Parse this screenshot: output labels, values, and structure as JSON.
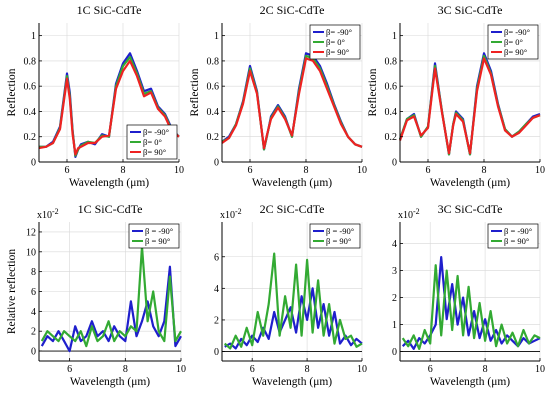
{
  "chart_data": [
    {
      "type": "line",
      "title": "1C SiC-CdTe",
      "xlabel": "Wavelength (μm)",
      "ylabel": "Reflection",
      "xlim": [
        5,
        10
      ],
      "ylim": [
        0,
        1.1
      ],
      "xticks": [
        "6",
        "8",
        "10"
      ],
      "yticks": [
        "0",
        "0.2",
        "0.4",
        "0.6",
        "0.8",
        "1"
      ],
      "grid": true,
      "legend_position": "bottom-right",
      "x": [
        5,
        5.25,
        5.5,
        5.75,
        6,
        6.1,
        6.2,
        6.3,
        6.4,
        6.5,
        6.75,
        7,
        7.25,
        7.5,
        7.75,
        8,
        8.25,
        8.5,
        8.75,
        9,
        9.25,
        9.5,
        9.75,
        10
      ],
      "series": [
        {
          "name": "β= -90°",
          "color": "#1f1fcc",
          "values": [
            0.12,
            0.12,
            0.16,
            0.28,
            0.7,
            0.55,
            0.25,
            0.04,
            0.1,
            0.14,
            0.16,
            0.14,
            0.22,
            0.2,
            0.62,
            0.78,
            0.86,
            0.72,
            0.56,
            0.58,
            0.44,
            0.38,
            0.26,
            0.2
          ]
        },
        {
          "name": "β= 0°",
          "color": "#33aa33",
          "values": [
            0.12,
            0.12,
            0.15,
            0.27,
            0.68,
            0.52,
            0.24,
            0.05,
            0.1,
            0.13,
            0.16,
            0.15,
            0.21,
            0.2,
            0.6,
            0.76,
            0.83,
            0.7,
            0.54,
            0.56,
            0.43,
            0.37,
            0.25,
            0.2
          ]
        },
        {
          "name": "β= 90°",
          "color": "#ee2222",
          "values": [
            0.11,
            0.12,
            0.15,
            0.26,
            0.66,
            0.5,
            0.22,
            0.06,
            0.11,
            0.12,
            0.15,
            0.15,
            0.2,
            0.21,
            0.58,
            0.72,
            0.8,
            0.68,
            0.52,
            0.55,
            0.42,
            0.36,
            0.24,
            0.2
          ]
        }
      ]
    },
    {
      "type": "line",
      "title": "2C SiC-CdTe",
      "xlabel": "Wavelength (μm)",
      "ylabel": "Reflection",
      "xlim": [
        5,
        10
      ],
      "ylim": [
        0,
        1.1
      ],
      "xticks": [
        "6",
        "8",
        "10"
      ],
      "yticks": [
        "0",
        "0.2",
        "0.4",
        "0.6",
        "0.8",
        "1"
      ],
      "grid": true,
      "legend_position": "top-right",
      "x": [
        5,
        5.25,
        5.5,
        5.75,
        6,
        6.25,
        6.5,
        6.6,
        6.75,
        7,
        7.25,
        7.5,
        7.75,
        8,
        8.25,
        8.5,
        8.75,
        9,
        9.25,
        9.5,
        9.75,
        10
      ],
      "series": [
        {
          "name": "β= -90°",
          "color": "#1f1fcc",
          "values": [
            0.16,
            0.2,
            0.3,
            0.48,
            0.76,
            0.56,
            0.1,
            0.2,
            0.36,
            0.45,
            0.36,
            0.2,
            0.58,
            0.86,
            0.84,
            0.76,
            0.62,
            0.46,
            0.32,
            0.2,
            0.14,
            0.12
          ]
        },
        {
          "name": "β= 0°",
          "color": "#33aa33",
          "values": [
            0.16,
            0.19,
            0.3,
            0.47,
            0.74,
            0.55,
            0.1,
            0.2,
            0.35,
            0.44,
            0.35,
            0.2,
            0.56,
            0.84,
            0.82,
            0.74,
            0.6,
            0.45,
            0.31,
            0.2,
            0.14,
            0.12
          ]
        },
        {
          "name": "β= 90°",
          "color": "#ee2222",
          "values": [
            0.15,
            0.19,
            0.29,
            0.46,
            0.72,
            0.54,
            0.11,
            0.21,
            0.34,
            0.43,
            0.34,
            0.21,
            0.54,
            0.82,
            0.8,
            0.72,
            0.58,
            0.44,
            0.3,
            0.2,
            0.14,
            0.12
          ]
        }
      ]
    },
    {
      "type": "line",
      "title": "3C SiC-CdTe",
      "xlabel": "Wavelength (μm)",
      "ylabel": "Reflection",
      "xlim": [
        5,
        10
      ],
      "ylim": [
        0,
        1.1
      ],
      "xticks": [
        "6",
        "8",
        "10"
      ],
      "yticks": [
        "0",
        "0.2",
        "0.4",
        "0.6",
        "0.8",
        "1"
      ],
      "grid": true,
      "legend_position": "top-right",
      "x": [
        5,
        5.25,
        5.5,
        5.75,
        6,
        6.25,
        6.5,
        6.75,
        6.9,
        7,
        7.25,
        7.5,
        7.75,
        8,
        8.25,
        8.5,
        8.75,
        9,
        9.25,
        9.5,
        9.75,
        10
      ],
      "series": [
        {
          "name": "β= -90°",
          "color": "#1f1fcc",
          "values": [
            0.18,
            0.34,
            0.38,
            0.2,
            0.28,
            0.78,
            0.4,
            0.06,
            0.3,
            0.4,
            0.34,
            0.06,
            0.6,
            0.86,
            0.72,
            0.46,
            0.26,
            0.2,
            0.24,
            0.3,
            0.36,
            0.38
          ]
        },
        {
          "name": "β= 0°",
          "color": "#33aa33",
          "values": [
            0.18,
            0.34,
            0.37,
            0.2,
            0.28,
            0.76,
            0.4,
            0.06,
            0.3,
            0.39,
            0.33,
            0.06,
            0.58,
            0.84,
            0.7,
            0.45,
            0.26,
            0.2,
            0.24,
            0.3,
            0.35,
            0.37
          ]
        },
        {
          "name": "β= 90°",
          "color": "#ee2222",
          "values": [
            0.17,
            0.33,
            0.36,
            0.21,
            0.27,
            0.74,
            0.39,
            0.07,
            0.29,
            0.38,
            0.32,
            0.07,
            0.56,
            0.82,
            0.69,
            0.44,
            0.25,
            0.2,
            0.23,
            0.29,
            0.35,
            0.37
          ]
        }
      ]
    },
    {
      "type": "line",
      "title": "1C SiC-CdTe",
      "xlabel": "Wavelength (μm)",
      "ylabel": "Relative reflection",
      "scale_label": "x10",
      "scale_exponent": "-2",
      "xlim": [
        4.9,
        10
      ],
      "ylim": [
        -1,
        13
      ],
      "xticks": [
        "6",
        "8",
        "10"
      ],
      "yticks": [
        "0",
        "2",
        "4",
        "6",
        "8",
        "10",
        "12"
      ],
      "grid": true,
      "legend_position": "top-right",
      "x": [
        5,
        5.2,
        5.4,
        5.6,
        5.8,
        6,
        6.2,
        6.4,
        6.6,
        6.8,
        7,
        7.2,
        7.4,
        7.6,
        7.8,
        8,
        8.2,
        8.4,
        8.6,
        8.8,
        9,
        9.2,
        9.4,
        9.6,
        9.8,
        10
      ],
      "series": [
        {
          "name": "β = -90°",
          "color": "#1f1fcc",
          "values": [
            0.5,
            1.5,
            1.0,
            2.0,
            1.0,
            0.0,
            2.5,
            1.0,
            1.5,
            3.0,
            1.5,
            2.0,
            1.0,
            2.5,
            1.5,
            1.0,
            5.0,
            1.5,
            3.0,
            5.0,
            2.5,
            1.5,
            3.0,
            8.5,
            0.5,
            1.5
          ]
        },
        {
          "name": "β = 90°",
          "color": "#33aa33",
          "values": [
            1.0,
            2.0,
            1.5,
            1.0,
            2.0,
            1.5,
            1.0,
            2.0,
            0.5,
            2.5,
            1.0,
            1.5,
            3.0,
            1.0,
            2.0,
            1.5,
            2.5,
            2.0,
            10.5,
            3.0,
            6.0,
            2.0,
            1.0,
            7.5,
            1.0,
            2.0
          ]
        }
      ]
    },
    {
      "type": "line",
      "title": "2C SiC-CdTe",
      "xlabel": "Wavelength (μm)",
      "ylabel": "",
      "scale_label": "x10",
      "scale_exponent": "-2",
      "xlim": [
        4.9,
        10
      ],
      "ylim": [
        -0.6,
        8.2
      ],
      "xticks": [
        "6",
        "8",
        "10"
      ],
      "yticks": [
        "0",
        "2",
        "4",
        "6"
      ],
      "grid": true,
      "legend_position": "top-right",
      "x": [
        5,
        5.2,
        5.4,
        5.6,
        5.8,
        6,
        6.2,
        6.4,
        6.6,
        6.8,
        7,
        7.2,
        7.4,
        7.6,
        7.8,
        8,
        8.2,
        8.4,
        8.6,
        8.8,
        9,
        9.2,
        9.4,
        9.6,
        9.8,
        10
      ],
      "series": [
        {
          "name": "β = -90°",
          "color": "#1f1fcc",
          "values": [
            0.3,
            0.5,
            0.2,
            0.8,
            0.4,
            1.0,
            0.6,
            1.5,
            0.8,
            2.5,
            1.2,
            2.0,
            2.8,
            1.2,
            3.5,
            2.0,
            4.0,
            1.5,
            3.0,
            1.0,
            2.5,
            0.5,
            1.0,
            0.4,
            0.8,
            0.5
          ]
        },
        {
          "name": "β = 90°",
          "color": "#33aa33",
          "values": [
            0.5,
            0.2,
            1.0,
            0.3,
            1.5,
            0.4,
            2.5,
            1.0,
            3.0,
            6.2,
            1.0,
            3.5,
            1.5,
            5.5,
            1.0,
            5.8,
            1.2,
            4.5,
            1.0,
            3.0,
            0.5,
            2.0,
            0.8,
            1.0,
            0.3,
            0.5
          ]
        }
      ]
    },
    {
      "type": "line",
      "title": "3C SiC-CdTe",
      "xlabel": "Wavelength (μm)",
      "ylabel": "",
      "scale_label": "x10",
      "scale_exponent": "-2",
      "xlim": [
        4.9,
        10
      ],
      "ylim": [
        -0.35,
        4.8
      ],
      "xticks": [
        "6",
        "8",
        "10"
      ],
      "yticks": [
        "0",
        "1",
        "2",
        "3",
        "4"
      ],
      "grid": true,
      "legend_position": "top-right",
      "x": [
        5,
        5.2,
        5.4,
        5.6,
        5.8,
        6,
        6.2,
        6.4,
        6.6,
        6.8,
        7,
        7.2,
        7.4,
        7.6,
        7.8,
        8,
        8.2,
        8.4,
        8.6,
        8.8,
        9,
        9.2,
        9.4,
        9.6,
        9.8,
        10
      ],
      "series": [
        {
          "name": "β = -90°",
          "color": "#1f1fcc",
          "values": [
            0.2,
            0.4,
            0.1,
            0.5,
            0.3,
            0.6,
            1.0,
            3.5,
            1.2,
            2.5,
            1.0,
            2.0,
            0.6,
            1.5,
            0.5,
            1.2,
            0.4,
            0.8,
            0.3,
            0.6,
            0.4,
            0.2,
            0.5,
            0.3,
            0.4,
            0.5
          ]
        },
        {
          "name": "β = 90°",
          "color": "#33aa33",
          "values": [
            0.5,
            0.2,
            0.6,
            0.1,
            0.8,
            0.3,
            3.2,
            0.6,
            3.0,
            0.8,
            2.8,
            0.6,
            2.4,
            0.5,
            1.8,
            0.4,
            1.5,
            0.2,
            1.0,
            0.3,
            0.7,
            0.2,
            0.8,
            0.3,
            0.6,
            0.5
          ]
        }
      ]
    }
  ]
}
